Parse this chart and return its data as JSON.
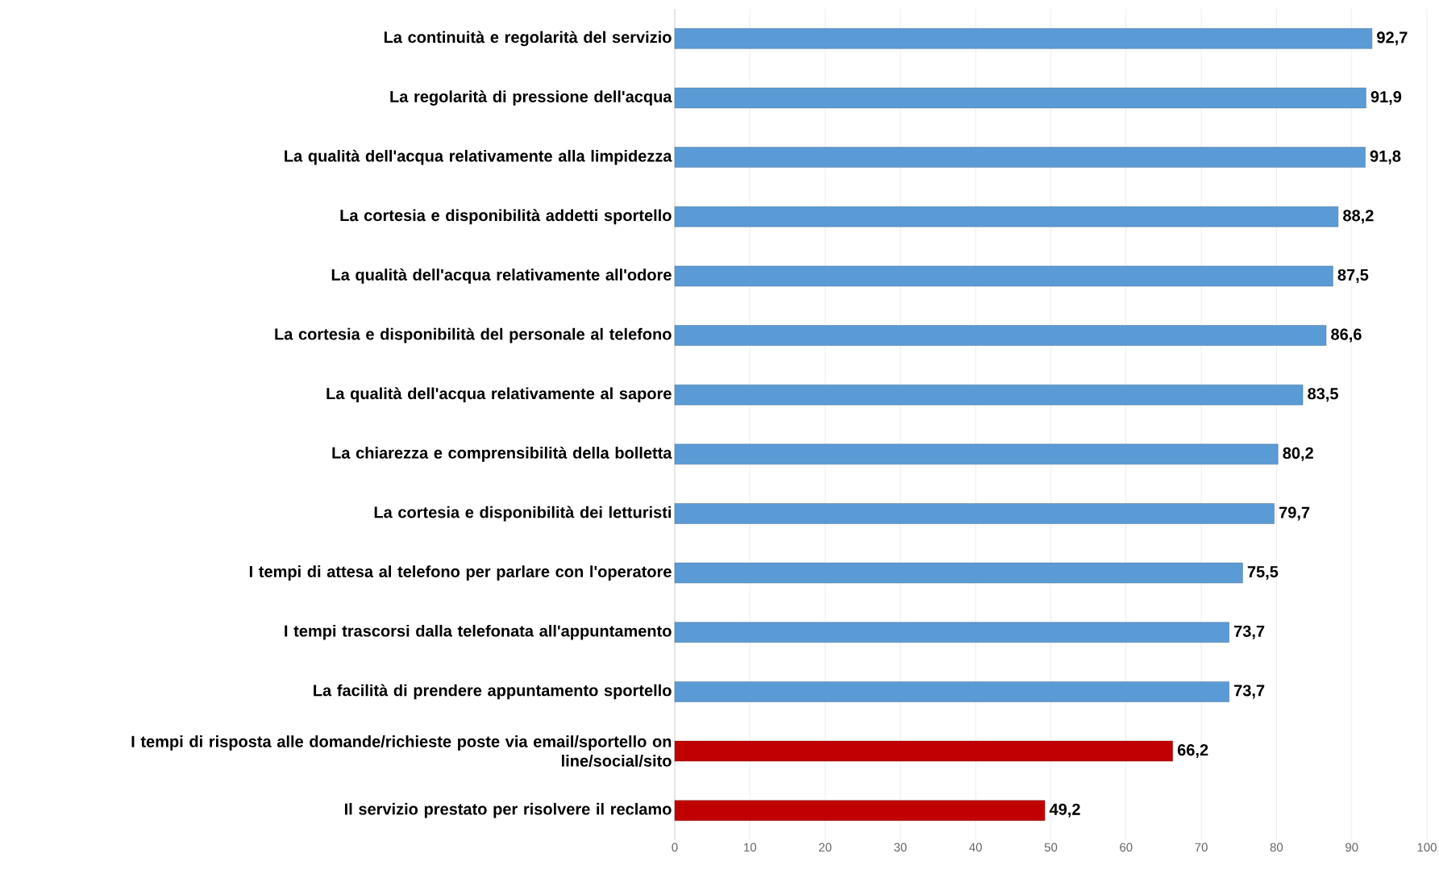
{
  "chart_data": {
    "type": "bar",
    "orientation": "horizontal",
    "categories": [
      "La continuità e regolarità del servizio",
      "La regolarità di pressione dell'acqua",
      "La qualità dell'acqua relativamente alla limpidezza",
      "La cortesia e disponibilità addetti sportello",
      "La qualità dell'acqua relativamente all'odore",
      "La cortesia e disponibilità del personale al telefono",
      "La qualità dell'acqua relativamente al sapore",
      "La chiarezza e comprensibilità della bolletta",
      "La cortesia e disponibilità dei letturisti",
      "I tempi di attesa al telefono per parlare con l'operatore",
      "I tempi trascorsi dalla telefonata all'appuntamento",
      "La facilità di prendere appuntamento sportello",
      "I tempi di risposta alle domande/richieste poste via email/sportello on line/social/sito",
      "Il servizio prestato per risolvere il reclamo"
    ],
    "values": [
      92.7,
      91.9,
      91.8,
      88.2,
      87.5,
      86.6,
      83.5,
      80.2,
      79.7,
      75.5,
      73.7,
      73.7,
      66.2,
      49.2
    ],
    "value_labels": [
      "92,7",
      "91,9",
      "91,8",
      "88,2",
      "87,5",
      "86,6",
      "83,5",
      "80,2",
      "79,7",
      "75,5",
      "73,7",
      "73,7",
      "66,2",
      "49,2"
    ],
    "colors": [
      "#5b9bd5",
      "#5b9bd5",
      "#5b9bd5",
      "#5b9bd5",
      "#5b9bd5",
      "#5b9bd5",
      "#5b9bd5",
      "#5b9bd5",
      "#5b9bd5",
      "#5b9bd5",
      "#5b9bd5",
      "#5b9bd5",
      "#c00000",
      "#c00000"
    ],
    "xlim": [
      0,
      100
    ],
    "xticks": [
      0,
      10,
      20,
      30,
      40,
      50,
      60,
      70,
      80,
      90,
      100
    ],
    "grid": "x"
  }
}
